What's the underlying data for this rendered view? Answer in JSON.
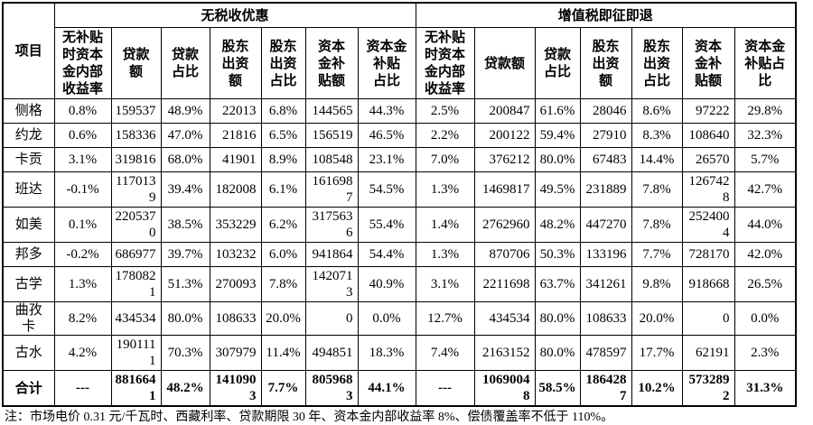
{
  "colors": {
    "background": "#ffffff",
    "border": "#000000",
    "text": "#000000"
  },
  "table": {
    "corner_header": "项目",
    "sections": [
      {
        "title": "无税收优惠"
      },
      {
        "title": "增值税即征即退"
      }
    ],
    "sub_headers": [
      "无补贴\n时资本\n金内部\n收益率",
      "贷款\n额",
      "贷款\n占比",
      "股东\n出资\n额",
      "股东\n出资\n占比",
      "资本\n金补\n贴额",
      "资本金\n补贴\n占比",
      "无补贴\n时资本\n金内部\n收益率",
      "贷款额",
      "贷款\n占比",
      "股东\n出资\n额",
      "股东\n出资\n占比",
      "资本\n金补\n贴额",
      "资本金\n补贴占\n比"
    ],
    "rows": [
      {
        "name": "侧格",
        "values": [
          "0.8%",
          "159537",
          "48.9%",
          "22013",
          "6.8%",
          "144565",
          "44.3%",
          "2.5%",
          "200847",
          "61.6%",
          "28046",
          "8.6%",
          "97222",
          "29.8%"
        ]
      },
      {
        "name": "约龙",
        "values": [
          "0.6%",
          "158336",
          "47.0%",
          "21816",
          "6.5%",
          "156519",
          "46.5%",
          "2.2%",
          "200122",
          "59.4%",
          "27910",
          "8.3%",
          "108640",
          "32.3%"
        ]
      },
      {
        "name": "卡贡",
        "values": [
          "3.1%",
          "319816",
          "68.0%",
          "41901",
          "8.9%",
          "108548",
          "23.1%",
          "7.0%",
          "376212",
          "80.0%",
          "67483",
          "14.4%",
          "26570",
          "5.7%"
        ]
      },
      {
        "name": "班达",
        "values": [
          "-0.1%",
          "1170139",
          "39.4%",
          "182008",
          "6.1%",
          "1616987",
          "54.5%",
          "1.3%",
          "1469817",
          "49.5%",
          "231889",
          "7.8%",
          "1267428",
          "42.7%"
        ]
      },
      {
        "name": "如美",
        "values": [
          "0.1%",
          "2205370",
          "38.5%",
          "353229",
          "6.2%",
          "3175636",
          "55.4%",
          "1.4%",
          "2762960",
          "48.2%",
          "447270",
          "7.8%",
          "2524004",
          "44.0%"
        ]
      },
      {
        "name": "邦多",
        "values": [
          "-0.2%",
          "686977",
          "39.7%",
          "103232",
          "6.0%",
          "941864",
          "54.4%",
          "1.3%",
          "870706",
          "50.3%",
          "133196",
          "7.7%",
          "728170",
          "42.0%"
        ]
      },
      {
        "name": "古学",
        "values": [
          "1.3%",
          "1780821",
          "51.3%",
          "270093",
          "7.8%",
          "1420713",
          "40.9%",
          "3.1%",
          "2211698",
          "63.7%",
          "341261",
          "9.8%",
          "918668",
          "26.5%"
        ]
      },
      {
        "name": "曲孜卡",
        "values": [
          "8.2%",
          "434534",
          "80.0%",
          "108633",
          "20.0%",
          "0",
          "0.0%",
          "12.7%",
          "434534",
          "80.0%",
          "108633",
          "20.0%",
          "0",
          "0.0%"
        ]
      },
      {
        "name": "古水",
        "values": [
          "4.2%",
          "1901111",
          "70.3%",
          "307979",
          "11.4%",
          "494851",
          "18.3%",
          "7.4%",
          "2163152",
          "80.0%",
          "478597",
          "17.7%",
          "62191",
          "2.3%"
        ]
      }
    ],
    "total_row": {
      "name": "合计",
      "values": [
        "---",
        "8816641",
        "48.2%",
        "1410903",
        "7.7%",
        "8059683",
        "44.1%",
        "---",
        "10690048",
        "58.5%",
        "1864287",
        "10.2%",
        "5732892",
        "31.3%"
      ]
    }
  },
  "footnote": "注：市场电价 0.31 元/千瓦时、西藏利率、贷款期限 30 年、资本金内部收益率 8%、偿债覆盖率不低于 110%。"
}
